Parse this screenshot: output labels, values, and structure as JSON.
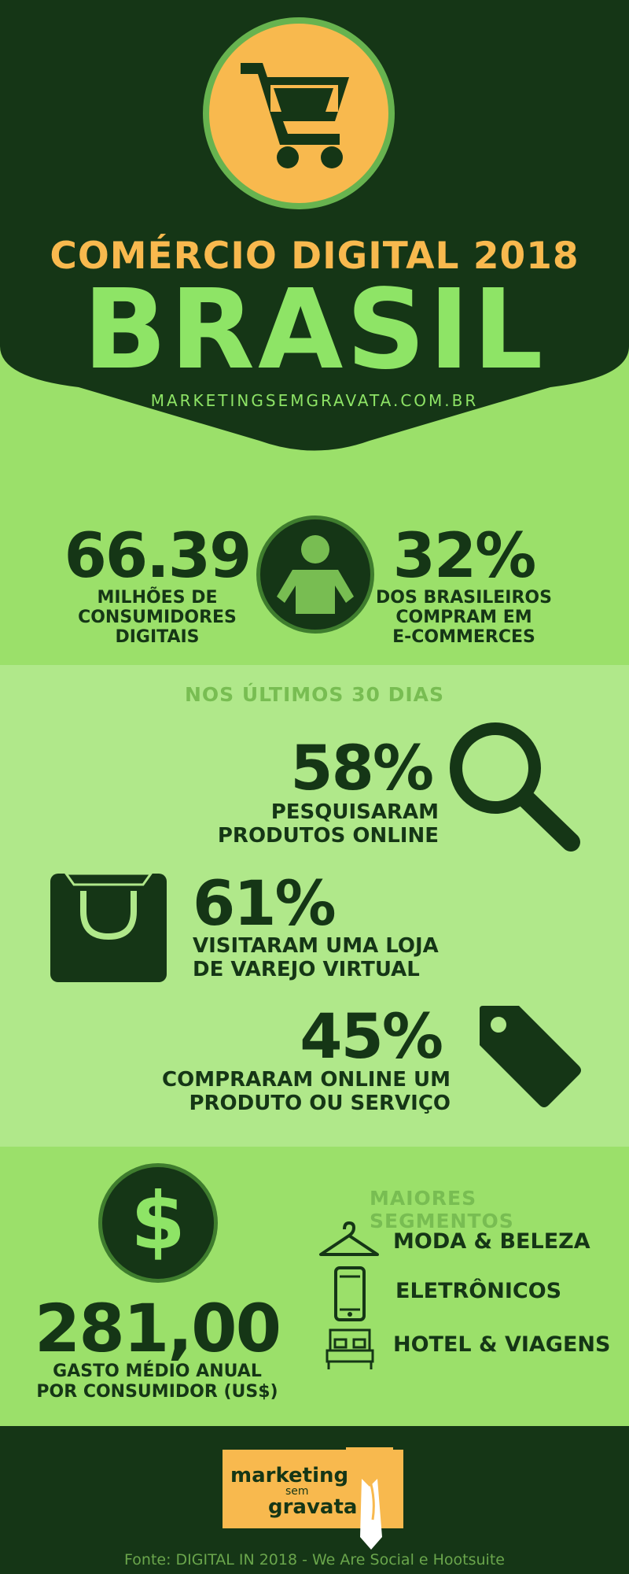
{
  "header": {
    "subtitle": "COMÉRCIO DIGITAL 2018",
    "title": "BRASIL",
    "website": "MARKETINGSEMGRAVATA.COM.BR"
  },
  "stats_top": {
    "consumers_value": "66.39",
    "consumers_label_1": "MILHÕES DE",
    "consumers_label_2": "CONSUMIDORES",
    "consumers_label_3": "DIGITAIS",
    "buyers_value": "32%",
    "buyers_label_1": "DOS BRASILEIROS",
    "buyers_label_2": "COMPRAM EM",
    "buyers_label_3": "E-COMMERCES"
  },
  "last_30_days": {
    "heading": "NOS ÚLTIMOS 30 DIAS",
    "items": [
      {
        "value": "58%",
        "line1": "PESQUISARAM",
        "line2": "PRODUTOS ONLINE",
        "icon": "magnifier-icon"
      },
      {
        "value": "61%",
        "line1": "VISITARAM UMA LOJA",
        "line2": "DE VAREJO VIRTUAL",
        "icon": "shopping-bag-icon"
      },
      {
        "value": "45%",
        "line1": "COMPRARAM ONLINE UM",
        "line2": "PRODUTO OU SERVIÇO",
        "icon": "price-tag-icon"
      }
    ]
  },
  "spending": {
    "value": "281,00",
    "label_1": "GASTO MÉDIO ANUAL",
    "label_2": "POR CONSUMIDOR (US$)",
    "symbol": "$"
  },
  "segments": {
    "heading": "MAIORES SEGMENTOS",
    "items": [
      {
        "label": "MODA & BELEZA",
        "icon": "hanger-icon"
      },
      {
        "label": "ELETRÔNICOS",
        "icon": "smartphone-icon"
      },
      {
        "label": "HOTEL & VIAGENS",
        "icon": "bed-icon"
      }
    ]
  },
  "footer": {
    "logo_line1": "marketing",
    "logo_line2": "sem",
    "logo_line3": "gravata",
    "source": "Fonte: DIGITAL IN 2018 - We Are Social e Hootsuite"
  },
  "colors": {
    "dark_green": "#153616",
    "light_green": "#9be06a",
    "pale_green": "#b0e88a",
    "accent_green": "#8ee466",
    "orange": "#f8b94e"
  }
}
